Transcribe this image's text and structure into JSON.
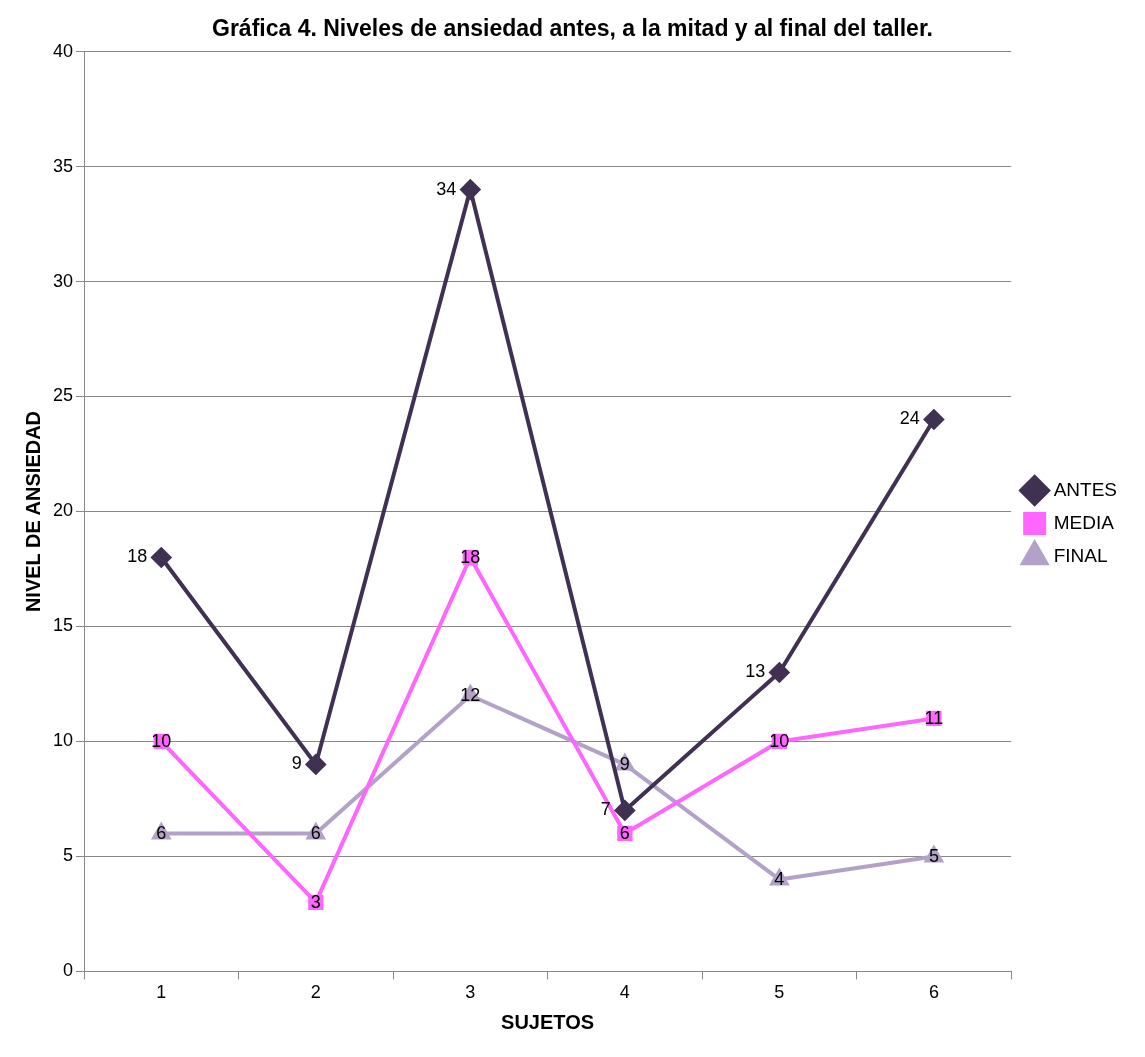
{
  "chart_data": {
    "type": "line",
    "title": "Gráfica 4. Niveles de ansiedad antes, a la mitad y al final del taller.",
    "xlabel": "SUJETOS",
    "ylabel": "NIVEL DE ANSIEDAD",
    "categories": [
      "1",
      "2",
      "3",
      "4",
      "5",
      "6"
    ],
    "ylim": [
      0,
      40
    ],
    "yticks": [
      0,
      5,
      10,
      15,
      20,
      25,
      30,
      35,
      40
    ],
    "grid": "y",
    "legend": "right",
    "data_labels": true,
    "series": [
      {
        "name": "ANTES",
        "color": "#403152",
        "marker": "diamond",
        "values": [
          18,
          9,
          34,
          7,
          13,
          24
        ]
      },
      {
        "name": "MEDIA",
        "color": "#ff66ff",
        "marker": "square",
        "values": [
          10,
          3,
          18,
          6,
          10,
          11
        ]
      },
      {
        "name": "FINAL",
        "color": "#b3a2c7",
        "marker": "triangle",
        "values": [
          6,
          6,
          12,
          9,
          4,
          5
        ]
      }
    ]
  }
}
